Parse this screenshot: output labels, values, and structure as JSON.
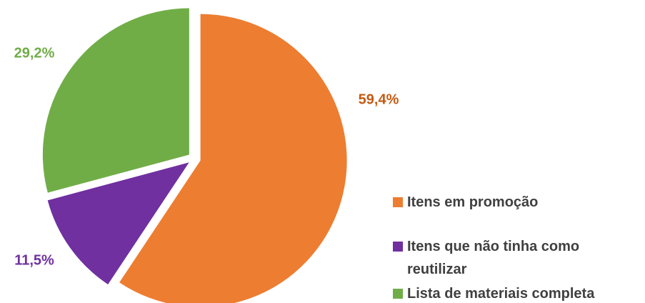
{
  "chart_data": {
    "type": "pie",
    "categories": [
      "Itens em promoção",
      "Itens que não tinha como reutilizar",
      "Lista de materiais completa"
    ],
    "values": [
      59.4,
      11.5,
      29.2
    ],
    "value_labels": [
      "59,4%",
      "11,5%",
      "29,2%"
    ],
    "colors": [
      "#ED7D31",
      "#7030A0",
      "#70AD47"
    ],
    "label_colors": [
      "#C55A11",
      "#7030A0",
      "#70AD47"
    ],
    "legend": "right"
  }
}
